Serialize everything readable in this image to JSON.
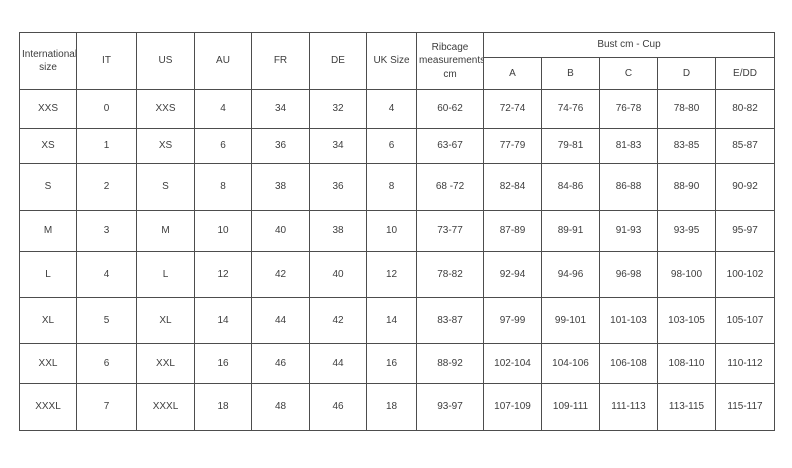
{
  "table": {
    "header": {
      "international_size": "International size",
      "it": "IT",
      "us": "US",
      "au": "AU",
      "fr": "FR",
      "de": "DE",
      "uk_size": "UK Size",
      "ribcage": "Ribcage measurements cm",
      "bust_group": "Bust cm - Cup",
      "cups": [
        "A",
        "B",
        "C",
        "D",
        "E/DD"
      ]
    },
    "rows": [
      [
        "XXS",
        "0",
        "XXS",
        "4",
        "34",
        "32",
        "4",
        "60-62",
        "72-74",
        "74-76",
        "76-78",
        "78-80",
        "80-82"
      ],
      [
        "XS",
        "1",
        "XS",
        "6",
        "36",
        "34",
        "6",
        "63-67",
        "77-79",
        "79-81",
        "81-83",
        "83-85",
        "85-87"
      ],
      [
        "S",
        "2",
        "S",
        "8",
        "38",
        "36",
        "8",
        "68 -72",
        "82-84",
        "84-86",
        "86-88",
        "88-90",
        "90-92"
      ],
      [
        "M",
        "3",
        "M",
        "10",
        "40",
        "38",
        "10",
        "73-77",
        "87-89",
        "89-91",
        "91-93",
        "93-95",
        "95-97"
      ],
      [
        "L",
        "4",
        "L",
        "12",
        "42",
        "40",
        "12",
        "78-82",
        "92-94",
        "94-96",
        "96-98",
        "98-100",
        "100-102"
      ],
      [
        "XL",
        "5",
        "XL",
        "14",
        "44",
        "42",
        "14",
        "83-87",
        "97-99",
        "99-101",
        "101-103",
        "103-105",
        "105-107"
      ],
      [
        "XXL",
        "6",
        "XXL",
        "16",
        "46",
        "44",
        "16",
        "88-92",
        "102-104",
        "104-106",
        "106-108",
        "108-110",
        "110-112"
      ],
      [
        "XXXL",
        "7",
        "XXXL",
        "18",
        "48",
        "46",
        "18",
        "93-97",
        "107-109",
        "109-111",
        "111-113",
        "113-115",
        "115-117"
      ]
    ]
  }
}
